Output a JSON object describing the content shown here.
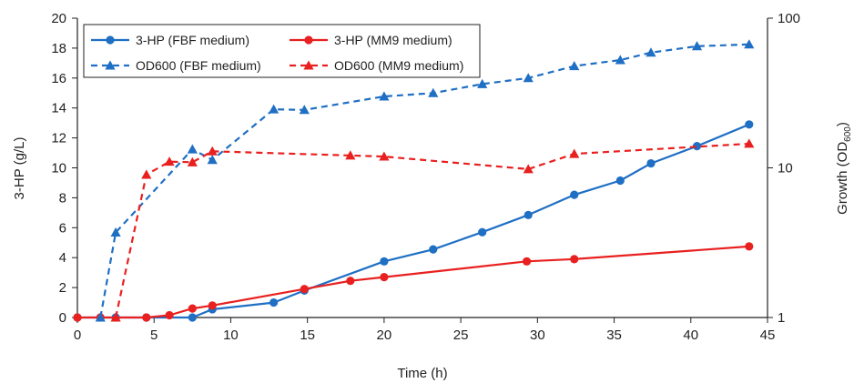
{
  "chart_data": {
    "type": "line",
    "xlabel": "Time (h)",
    "ylabel_left": "3-HP (g/L)",
    "ylabel_right": {
      "text": "Growth (OD",
      "sub": "600",
      "suffix": ")"
    },
    "xlim": [
      0,
      45
    ],
    "ylim_left": [
      0,
      20
    ],
    "ylim_right": [
      1,
      100
    ],
    "right_scale": "log",
    "x_ticks": [
      "0",
      "5",
      "10",
      "15",
      "20",
      "25",
      "30",
      "35",
      "40",
      "45"
    ],
    "y_left_ticks": [
      "0",
      "2",
      "4",
      "6",
      "8",
      "10",
      "12",
      "14",
      "16",
      "18",
      "20"
    ],
    "y_right_ticks": [
      "1",
      "10",
      "100"
    ],
    "grid": false,
    "legend_position": "top-left",
    "series": [
      {
        "name": "3-HP (FBF medium)",
        "axis": "left",
        "color": "#1f6fc4",
        "dash": "solid",
        "marker": "circle",
        "points": [
          [
            0,
            0
          ],
          [
            2.5,
            0
          ],
          [
            4.5,
            0
          ],
          [
            7.5,
            0
          ],
          [
            8.8,
            0.55
          ],
          [
            12.8,
            1.0
          ],
          [
            14.8,
            1.8
          ],
          [
            20.0,
            3.75
          ],
          [
            23.2,
            4.55
          ],
          [
            26.4,
            5.7
          ],
          [
            29.4,
            6.85
          ],
          [
            32.4,
            8.2
          ],
          [
            35.4,
            9.15
          ],
          [
            37.4,
            10.3
          ],
          [
            40.4,
            11.45
          ],
          [
            43.8,
            12.9
          ]
        ]
      },
      {
        "name": "3-HP (MM9 medium)",
        "axis": "left",
        "color": "#e8201f",
        "dash": "solid",
        "marker": "circle",
        "points": [
          [
            0,
            0
          ],
          [
            1.5,
            0
          ],
          [
            4.5,
            0
          ],
          [
            6.0,
            0.15
          ],
          [
            7.5,
            0.6
          ],
          [
            8.8,
            0.8
          ],
          [
            14.8,
            1.9
          ],
          [
            17.8,
            2.45
          ],
          [
            20.0,
            2.7
          ],
          [
            29.3,
            3.75
          ],
          [
            32.4,
            3.9
          ],
          [
            43.8,
            4.75
          ]
        ]
      },
      {
        "name": "OD600 (FBF medium)",
        "axis": "right",
        "color": "#1f6fc4",
        "dash": "dashed",
        "marker": "triangle",
        "points": [
          [
            1.5,
            1.0
          ],
          [
            2.5,
            3.7
          ],
          [
            7.5,
            13.3
          ],
          [
            8.8,
            11.3
          ],
          [
            12.8,
            24.6
          ],
          [
            14.8,
            24.4
          ],
          [
            20.0,
            30.0
          ],
          [
            23.2,
            31.6
          ],
          [
            26.4,
            36.3
          ],
          [
            29.4,
            39.8
          ],
          [
            32.4,
            47.9
          ],
          [
            35.4,
            52.5
          ],
          [
            37.4,
            58.9
          ],
          [
            40.4,
            65.0
          ],
          [
            43.8,
            66.8
          ]
        ]
      },
      {
        "name": "OD600 (MM9 medium)",
        "axis": "right",
        "color": "#e8201f",
        "dash": "dashed",
        "marker": "triangle",
        "points": [
          [
            2.5,
            1.0
          ],
          [
            4.5,
            9.0
          ],
          [
            6.0,
            11.0
          ],
          [
            7.5,
            10.9
          ],
          [
            8.8,
            12.9
          ],
          [
            17.8,
            12.1
          ],
          [
            20.0,
            11.9
          ],
          [
            29.4,
            9.8
          ],
          [
            32.4,
            12.4
          ],
          [
            43.8,
            14.5
          ]
        ]
      }
    ]
  }
}
